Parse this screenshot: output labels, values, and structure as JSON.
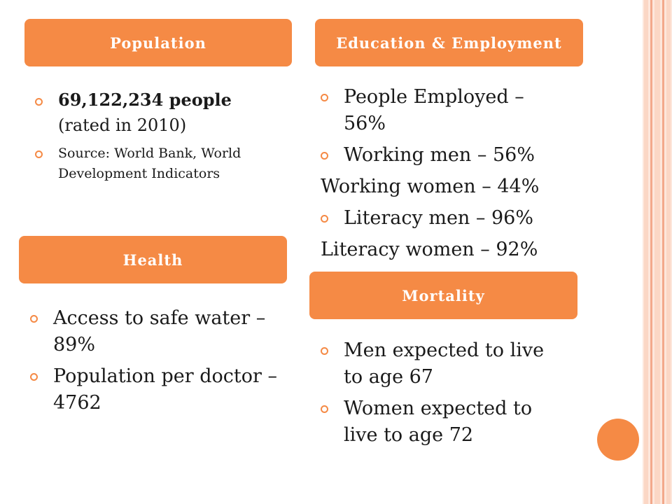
{
  "colors": {
    "accent": "#f58a45",
    "stripe_light": "#fbd7c5",
    "stripe_dark": "#f3a98b"
  },
  "population": {
    "heading": "Population",
    "count": "69,122,234 people",
    "rated": "(rated in 2010)",
    "source": "Source: World Bank, World Development Indicators"
  },
  "education": {
    "heading": "Education & Employment",
    "employed": "People Employed – 56%",
    "working_men": "Working men – 56%",
    "working_women": "Working women – 44%",
    "literacy_men": "Literacy men – 96%",
    "literacy_women": "Literacy women – 92%"
  },
  "health": {
    "heading": "Health",
    "water": "Access to safe water – 89%",
    "doctor": "Population per doctor – 4762"
  },
  "mortality": {
    "heading": "Mortality",
    "men": "Men expected to live to age 67",
    "women": "Women expected to live to age 72"
  }
}
